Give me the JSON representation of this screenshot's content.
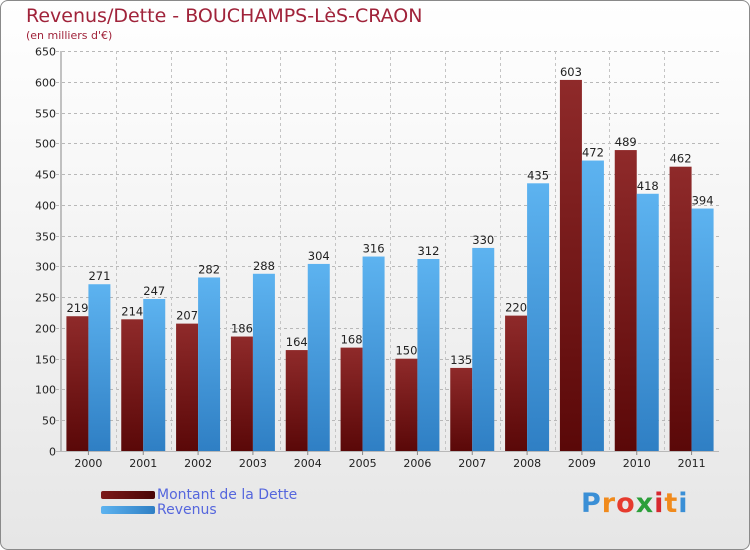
{
  "chart_data": {
    "type": "bar",
    "title": "Revenus/Dette - BOUCHAMPS-LèS-CRAON",
    "subtitle": "(en milliers d'€)",
    "categories": [
      "2000",
      "2001",
      "2002",
      "2003",
      "2004",
      "2005",
      "2006",
      "2007",
      "2008",
      "2009",
      "2010",
      "2011"
    ],
    "series": [
      {
        "name": "Montant de la Dette",
        "color": "#7d1a1a",
        "values": [
          219,
          214,
          207,
          186,
          164,
          168,
          150,
          135,
          220,
          603,
          489,
          462
        ]
      },
      {
        "name": "Revenus",
        "color": "#4aa3e6",
        "values": [
          271,
          247,
          282,
          288,
          304,
          316,
          312,
          330,
          435,
          472,
          418,
          394
        ]
      }
    ],
    "ylim": [
      0,
      650
    ],
    "yticks": [
      0,
      50,
      100,
      150,
      200,
      250,
      300,
      350,
      400,
      450,
      500,
      550,
      600,
      650
    ],
    "grid": true,
    "legend_position": "bottom-left",
    "xlabel": "",
    "ylabel": ""
  },
  "logo": {
    "letters": [
      "P",
      "r",
      "o",
      "x",
      "i",
      "t",
      "i"
    ],
    "colors": [
      "#3a8fd6",
      "#f08a1c",
      "#e63b2e",
      "#2b9f3a",
      "#d7282f",
      "#f08a1c",
      "#3a8fd6"
    ]
  }
}
